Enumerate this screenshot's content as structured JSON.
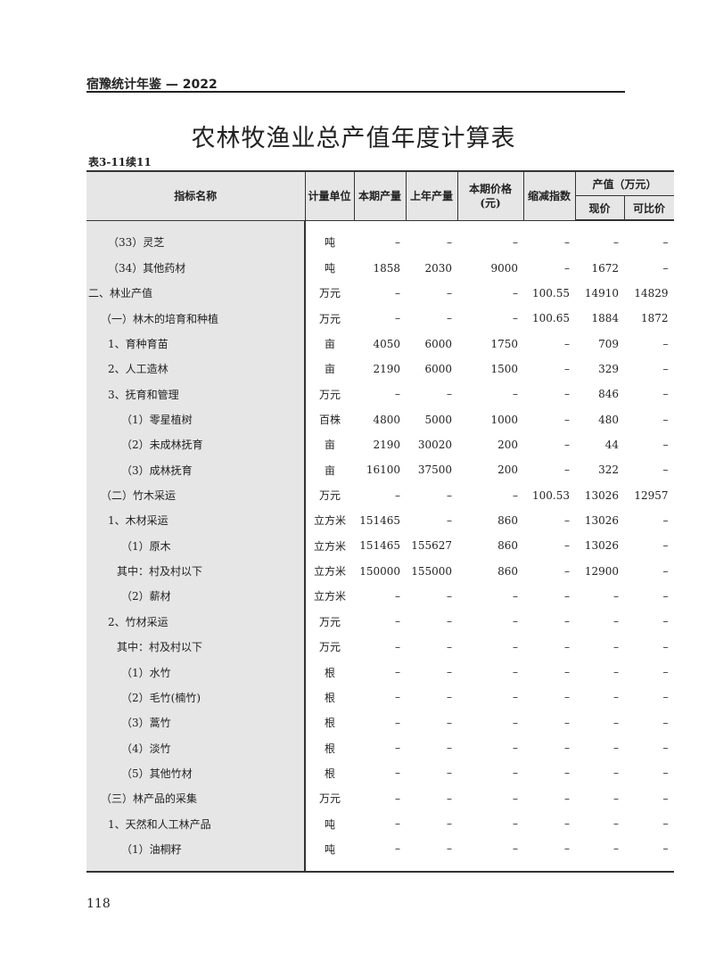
{
  "running_head": "宿豫统计年鉴 — 2022",
  "title": "农林牧渔业总产值年度计算表",
  "table_number": "表3-11续11",
  "headers": {
    "name": "指标名称",
    "unit": "计量单位",
    "cur_output": "本期产量",
    "prev_output": "上年产量",
    "price": "本期价格(元)",
    "deflator": "缩减指数",
    "value_group": "产值（万元）",
    "current_price": "现价",
    "comparable_price": "可比价"
  },
  "rows": [
    {
      "level": 2,
      "name": "（33）灵芝",
      "unit": "吨",
      "cells": [
        "–",
        "–",
        "–",
        "–",
        "–",
        "–"
      ]
    },
    {
      "level": 2,
      "name": "（34）其他药材",
      "unit": "吨",
      "cells": [
        "1858",
        "2030",
        "9000",
        "–",
        "1672",
        "–"
      ]
    },
    {
      "level": 0,
      "name": "二、林业产值",
      "unit": "万元",
      "cells": [
        "–",
        "–",
        "–",
        "100.55",
        "14910",
        "14829"
      ]
    },
    {
      "level": 1,
      "name": "（一）林木的培育和种植",
      "unit": "万元",
      "cells": [
        "–",
        "–",
        "–",
        "100.65",
        "1884",
        "1872"
      ]
    },
    {
      "level": 2,
      "name": "1、育种育苗",
      "unit": "亩",
      "cells": [
        "4050",
        "6000",
        "1750",
        "–",
        "709",
        "–"
      ]
    },
    {
      "level": 2,
      "name": "2、人工造林",
      "unit": "亩",
      "cells": [
        "2190",
        "6000",
        "1500",
        "–",
        "329",
        "–"
      ]
    },
    {
      "level": 2,
      "name": "3、抚育和管理",
      "unit": "万元",
      "cells": [
        "–",
        "–",
        "–",
        "–",
        "846",
        "–"
      ]
    },
    {
      "level": 3,
      "name": "（1）零星植树",
      "unit": "百株",
      "cells": [
        "4800",
        "5000",
        "1000",
        "–",
        "480",
        "–"
      ]
    },
    {
      "level": 3,
      "name": "（2）未成林抚育",
      "unit": "亩",
      "cells": [
        "2190",
        "30020",
        "200",
        "–",
        "44",
        "–"
      ]
    },
    {
      "level": 3,
      "name": "（3）成林抚育",
      "unit": "亩",
      "cells": [
        "16100",
        "37500",
        "200",
        "–",
        "322",
        "–"
      ]
    },
    {
      "level": 1,
      "name": "（二）竹木采运",
      "unit": "万元",
      "cells": [
        "–",
        "–",
        "–",
        "100.53",
        "13026",
        "12957"
      ]
    },
    {
      "level": 2,
      "name": "1、木材采运",
      "unit": "立方米",
      "cells": [
        "151465",
        "–",
        "860",
        "–",
        "13026",
        "–"
      ]
    },
    {
      "level": 3,
      "name": "（1）原木",
      "unit": "立方米",
      "cells": [
        "151465",
        "155627",
        "860",
        "–",
        "13026",
        "–"
      ]
    },
    {
      "level": 4,
      "name": "其中：村及村以下",
      "unit": "立方米",
      "cells": [
        "150000",
        "155000",
        "860",
        "–",
        "12900",
        "–"
      ]
    },
    {
      "level": 3,
      "name": "（2）薪材",
      "unit": "立方米",
      "cells": [
        "–",
        "–",
        "–",
        "–",
        "–",
        "–"
      ]
    },
    {
      "level": 2,
      "name": "2、竹材采运",
      "unit": "万元",
      "cells": [
        "–",
        "–",
        "–",
        "–",
        "–",
        "–"
      ]
    },
    {
      "level": 4,
      "name": "其中：村及村以下",
      "unit": "万元",
      "cells": [
        "–",
        "–",
        "–",
        "–",
        "–",
        "–"
      ]
    },
    {
      "level": 3,
      "name": "（1）水竹",
      "unit": "根",
      "cells": [
        "–",
        "–",
        "–",
        "–",
        "–",
        "–"
      ]
    },
    {
      "level": 3,
      "name": "（2）毛竹(楠竹)",
      "unit": "根",
      "cells": [
        "–",
        "–",
        "–",
        "–",
        "–",
        "–"
      ]
    },
    {
      "level": 3,
      "name": "（3）蒿竹",
      "unit": "根",
      "cells": [
        "–",
        "–",
        "–",
        "–",
        "–",
        "–"
      ]
    },
    {
      "level": 3,
      "name": "（4）淡竹",
      "unit": "根",
      "cells": [
        "–",
        "–",
        "–",
        "–",
        "–",
        "–"
      ]
    },
    {
      "level": 3,
      "name": "（5）其他竹材",
      "unit": "根",
      "cells": [
        "–",
        "–",
        "–",
        "–",
        "–",
        "–"
      ]
    },
    {
      "level": 1,
      "name": "（三）林产品的采集",
      "unit": "万元",
      "cells": [
        "–",
        "–",
        "–",
        "–",
        "–",
        "–"
      ]
    },
    {
      "level": 2,
      "name": "1、天然和人工林产品",
      "unit": "吨",
      "cells": [
        "–",
        "–",
        "–",
        "–",
        "–",
        "–"
      ]
    },
    {
      "level": 3,
      "name": "（1）油桐籽",
      "unit": "吨",
      "cells": [
        "–",
        "–",
        "–",
        "–",
        "–",
        "–"
      ]
    }
  ],
  "page_number": "118"
}
